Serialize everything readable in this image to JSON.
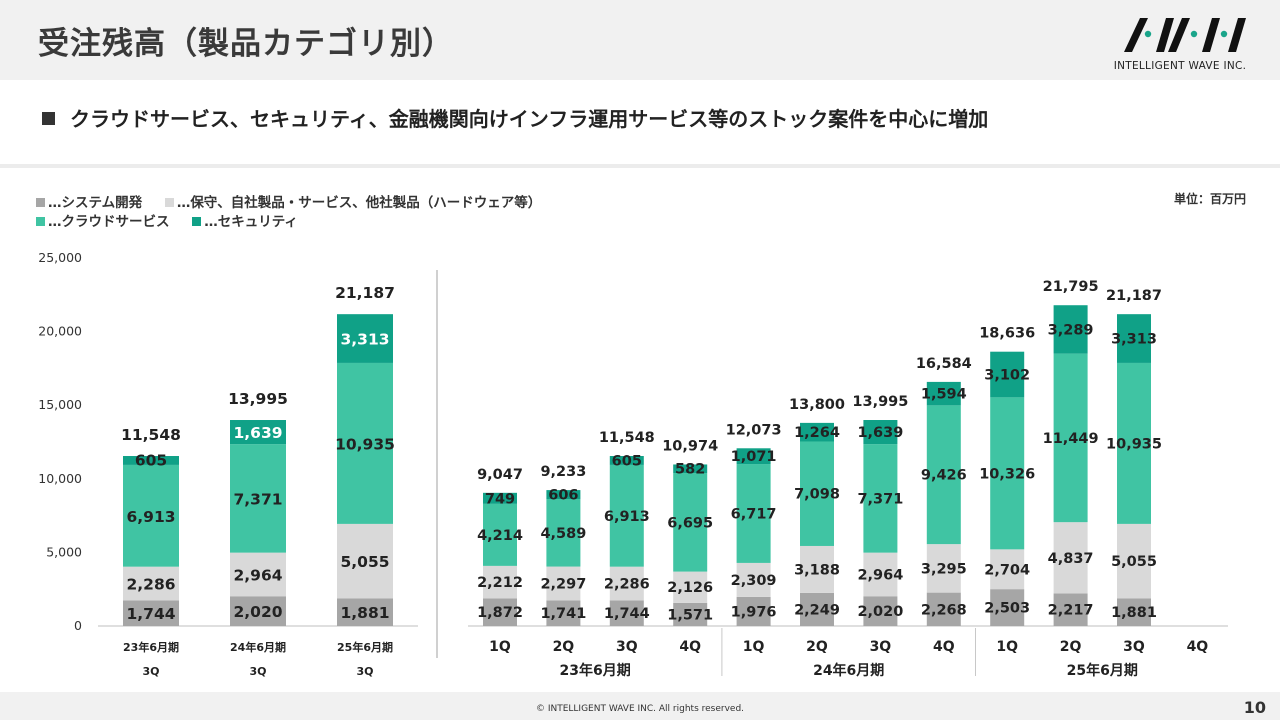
{
  "header": {
    "title": "受注残高（製品カテゴリ別）",
    "logo_text": "INTELLIGENT WAVE INC."
  },
  "subtitle": "クラウドサービス、セキュリティ、金融機関向けインフラ運用サービス等のストック案件を中心に増加",
  "unit": "単位：百万円",
  "colors": {
    "system": "#a6a6a6",
    "maintenance": "#d9d9d9",
    "cloud": "#40c4a3",
    "security": "#10a187"
  },
  "footer": {
    "copyright": "© INTELLIGENT WAVE INC. All rights reserved.",
    "page": "10"
  },
  "chart_data": [
    {
      "type": "bar",
      "stacked": true,
      "legend": [
        "…システム開発",
        "…保守、自社製品・サービス、他社製品（ハードウェア等）",
        "…クラウドサービス",
        "…セキュリティ"
      ],
      "legend_position": "top-left",
      "categories": [
        "23年6月期",
        "24年6月期",
        "25年6月期"
      ],
      "category_sublabels": [
        "3Q",
        "3Q",
        "3Q"
      ],
      "yticks": [
        "25,000",
        "20,000",
        "15,000",
        "10,000",
        "5,000",
        "0"
      ],
      "ylim": [
        0,
        25000
      ],
      "series": [
        {
          "name": "…システム開発",
          "values": [
            1744,
            2020,
            1881
          ],
          "labels": [
            "1,744",
            "2,020",
            "1,881"
          ]
        },
        {
          "name": "…保守、自社製品・サービス、他社製品（ハードウェア等）",
          "values": [
            2286,
            2964,
            5055
          ],
          "labels": [
            "2,286",
            "2,964",
            "5,055"
          ]
        },
        {
          "name": "…クラウドサービス",
          "values": [
            6913,
            7371,
            10935
          ],
          "labels": [
            "6,913",
            "7,371",
            "10,935"
          ]
        },
        {
          "name": "…セキュリティ",
          "values": [
            605,
            1639,
            3313
          ],
          "labels": [
            "605",
            "1,639",
            "3,313"
          ]
        }
      ],
      "totals": [
        11548,
        13995,
        21187
      ],
      "total_labels": [
        "11,548",
        "13,995",
        "21,187"
      ]
    },
    {
      "type": "bar",
      "stacked": true,
      "categories": [
        "1Q",
        "2Q",
        "3Q",
        "4Q",
        "1Q",
        "2Q",
        "3Q",
        "4Q",
        "1Q",
        "2Q",
        "3Q",
        "4Q"
      ],
      "groups": [
        {
          "label": "23年6月期",
          "span": 4
        },
        {
          "label": "24年6月期",
          "span": 4
        },
        {
          "label": "25年6月期",
          "span": 4
        }
      ],
      "ylim": [
        0,
        25000
      ],
      "series": [
        {
          "name": "…システム開発",
          "values": [
            1872,
            1741,
            1744,
            1571,
            1976,
            2249,
            2020,
            2268,
            2503,
            2217,
            1881,
            null
          ],
          "labels": [
            "1,872",
            "1,741",
            "1,744",
            "1,571",
            "1,976",
            "2,249",
            "2,020",
            "2,268",
            "2,503",
            "2,217",
            "1,881",
            ""
          ]
        },
        {
          "name": "…保守、自社製品・サービス、他社製品（ハードウェア等）",
          "values": [
            2212,
            2297,
            2286,
            2126,
            2309,
            3188,
            2964,
            3295,
            2704,
            4837,
            5055,
            null
          ],
          "labels": [
            "2,212",
            "2,297",
            "2,286",
            "2,126",
            "2,309",
            "3,188",
            "2,964",
            "3,295",
            "2,704",
            "4,837",
            "5,055",
            ""
          ]
        },
        {
          "name": "…クラウドサービス",
          "values": [
            4214,
            4589,
            6913,
            6695,
            6717,
            7098,
            7371,
            9426,
            10326,
            11449,
            10935,
            null
          ],
          "labels": [
            "4,214",
            "4,589",
            "6,913",
            "6,695",
            "6,717",
            "7,098",
            "7,371",
            "9,426",
            "10,326",
            "11,449",
            "10,935",
            ""
          ]
        },
        {
          "name": "…セキュリティ",
          "values": [
            749,
            606,
            605,
            582,
            1071,
            1264,
            1639,
            1594,
            3102,
            3289,
            3313,
            null
          ],
          "labels": [
            "749",
            "606",
            "605",
            "582",
            "1,071",
            "1,264",
            "1,639",
            "1,594",
            "3,102",
            "3,289",
            "3,313",
            ""
          ]
        }
      ],
      "totals": [
        9047,
        9233,
        11548,
        10974,
        12073,
        13800,
        13995,
        16584,
        18636,
        21795,
        21187,
        null
      ],
      "total_labels": [
        "9,047",
        "9,233",
        "11,548",
        "10,974",
        "12,073",
        "13,800",
        "13,995",
        "16,584",
        "18,636",
        "21,795",
        "21,187",
        ""
      ]
    }
  ]
}
